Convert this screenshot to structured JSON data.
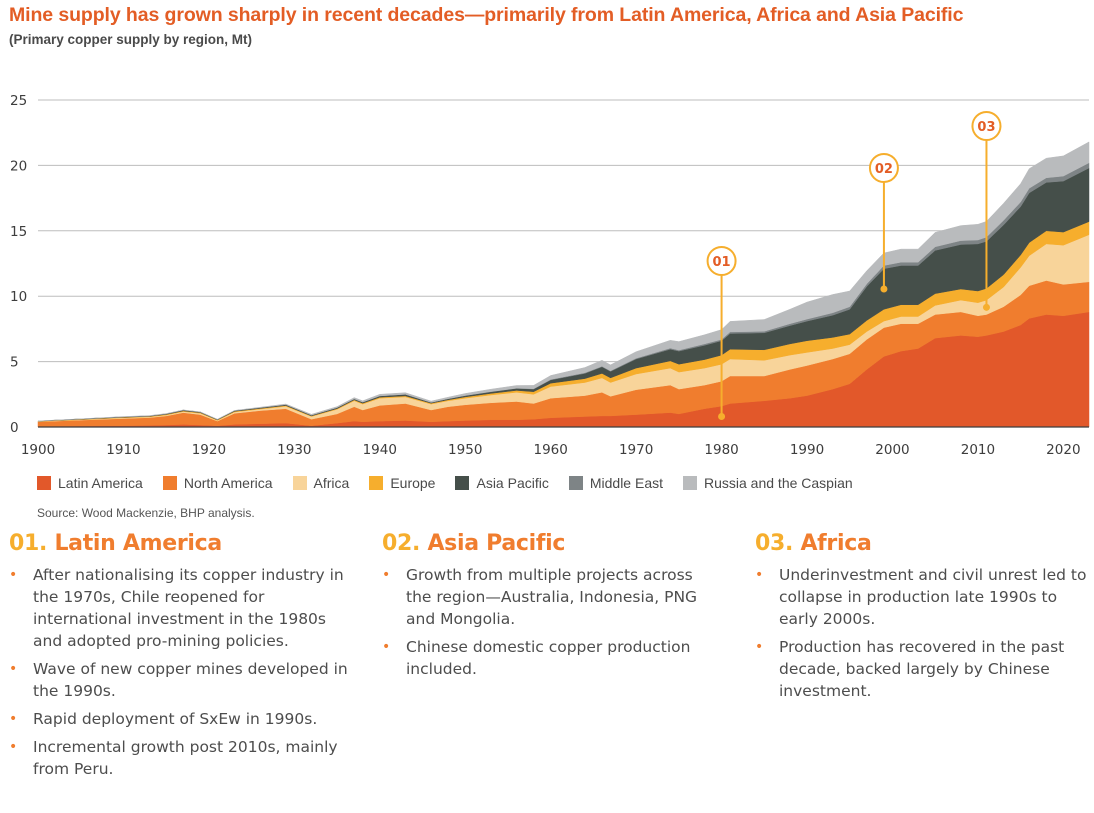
{
  "header": {
    "title": "Mine supply has grown sharply in recent decades—primarily from Latin America, Africa and Asia Pacific",
    "subtitle": "(Primary copper supply by region, Mt)"
  },
  "source": "Source: Wood Mackenzie, BHP analysis.",
  "chart_data": {
    "type": "area",
    "stacked": true,
    "title": "Mine supply has grown sharply in recent decades—primarily from Latin America, Africa and Asia Pacific",
    "subtitle": "(Primary copper supply by region, Mt)",
    "xlabel": "",
    "ylabel": "Mt",
    "xlim": [
      1900,
      2023
    ],
    "ylim": [
      0,
      25
    ],
    "yticks": [
      0,
      5,
      10,
      15,
      20,
      25
    ],
    "xticks": [
      1900,
      1910,
      1920,
      1930,
      1940,
      1950,
      1960,
      1970,
      1980,
      1990,
      2000,
      2010,
      2020
    ],
    "grid": true,
    "legend_position": "bottom",
    "x": [
      1900,
      1905,
      1910,
      1913,
      1915,
      1917,
      1919,
      1921,
      1923,
      1926,
      1929,
      1932,
      1935,
      1937,
      1938,
      1940,
      1943,
      1946,
      1948,
      1950,
      1953,
      1956,
      1958,
      1960,
      1964,
      1966,
      1967,
      1970,
      1974,
      1975,
      1978,
      1980,
      1981,
      1985,
      1988,
      1990,
      1993,
      1995,
      1997,
      1999,
      2001,
      2003,
      2005,
      2008,
      2010,
      2011,
      2013,
      2015,
      2016,
      2018,
      2020,
      2023
    ],
    "series": [
      {
        "name": "Latin America",
        "color": "#e2582a",
        "values": [
          0.05,
          0.08,
          0.1,
          0.12,
          0.15,
          0.2,
          0.15,
          0.1,
          0.2,
          0.25,
          0.3,
          0.1,
          0.3,
          0.45,
          0.4,
          0.45,
          0.5,
          0.4,
          0.45,
          0.5,
          0.55,
          0.55,
          0.6,
          0.7,
          0.8,
          0.85,
          0.85,
          0.95,
          1.1,
          1.0,
          1.4,
          1.6,
          1.8,
          2.0,
          2.2,
          2.4,
          2.9,
          3.3,
          4.4,
          5.4,
          5.8,
          6.0,
          6.8,
          7.0,
          6.9,
          7.0,
          7.3,
          7.8,
          8.3,
          8.6,
          8.5,
          8.8
        ]
      },
      {
        "name": "North America",
        "color": "#f07d2e",
        "values": [
          0.35,
          0.45,
          0.55,
          0.6,
          0.7,
          0.9,
          0.8,
          0.35,
          0.85,
          1.0,
          1.1,
          0.5,
          0.7,
          1.1,
          0.9,
          1.2,
          1.3,
          0.9,
          1.1,
          1.2,
          1.3,
          1.4,
          1.2,
          1.5,
          1.6,
          1.8,
          1.5,
          1.9,
          2.1,
          1.9,
          1.8,
          1.9,
          2.1,
          1.9,
          2.2,
          2.3,
          2.3,
          2.3,
          2.3,
          2.2,
          2.1,
          1.9,
          1.8,
          1.8,
          1.6,
          1.6,
          1.9,
          2.3,
          2.5,
          2.6,
          2.4,
          2.3
        ]
      },
      {
        "name": "Africa",
        "color": "#f8d49a",
        "values": [
          0.02,
          0.03,
          0.05,
          0.05,
          0.06,
          0.08,
          0.1,
          0.05,
          0.1,
          0.12,
          0.18,
          0.2,
          0.35,
          0.45,
          0.45,
          0.55,
          0.5,
          0.45,
          0.45,
          0.5,
          0.6,
          0.7,
          0.7,
          0.9,
          1.0,
          1.1,
          1.05,
          1.2,
          1.3,
          1.3,
          1.3,
          1.3,
          1.3,
          1.2,
          1.1,
          1.0,
          0.8,
          0.7,
          0.6,
          0.5,
          0.55,
          0.55,
          0.7,
          0.9,
          1.0,
          1.1,
          1.5,
          2.1,
          2.3,
          2.8,
          3.0,
          3.6
        ]
      },
      {
        "name": "Europe",
        "color": "#f6ae2d",
        "values": [
          0.02,
          0.03,
          0.04,
          0.04,
          0.05,
          0.05,
          0.05,
          0.04,
          0.05,
          0.05,
          0.06,
          0.05,
          0.06,
          0.07,
          0.07,
          0.08,
          0.08,
          0.07,
          0.08,
          0.1,
          0.12,
          0.15,
          0.2,
          0.25,
          0.3,
          0.35,
          0.35,
          0.45,
          0.55,
          0.6,
          0.65,
          0.7,
          0.75,
          0.8,
          0.85,
          0.9,
          0.85,
          0.8,
          0.85,
          0.9,
          0.9,
          0.9,
          0.9,
          0.85,
          0.9,
          0.9,
          0.95,
          0.95,
          1.0,
          1.0,
          1.0,
          1.0
        ]
      },
      {
        "name": "Asia Pacific",
        "color": "#454f4a",
        "values": [
          0.02,
          0.03,
          0.04,
          0.04,
          0.05,
          0.06,
          0.05,
          0.04,
          0.05,
          0.06,
          0.07,
          0.06,
          0.07,
          0.08,
          0.08,
          0.1,
          0.12,
          0.06,
          0.08,
          0.1,
          0.12,
          0.15,
          0.2,
          0.25,
          0.4,
          0.5,
          0.5,
          0.7,
          0.9,
          1.0,
          1.1,
          1.1,
          1.2,
          1.3,
          1.4,
          1.5,
          1.7,
          1.9,
          2.6,
          3.1,
          3.0,
          3.0,
          3.3,
          3.4,
          3.6,
          3.6,
          3.8,
          3.7,
          3.8,
          3.7,
          3.9,
          4.1
        ]
      },
      {
        "name": "Middle East",
        "color": "#7e8486",
        "values": [
          0.0,
          0.0,
          0.0,
          0.0,
          0.0,
          0.0,
          0.0,
          0.0,
          0.0,
          0.0,
          0.0,
          0.0,
          0.0,
          0.0,
          0.0,
          0.0,
          0.0,
          0.0,
          0.0,
          0.01,
          0.02,
          0.02,
          0.03,
          0.04,
          0.05,
          0.05,
          0.05,
          0.06,
          0.08,
          0.08,
          0.1,
          0.1,
          0.12,
          0.12,
          0.15,
          0.15,
          0.18,
          0.2,
          0.2,
          0.25,
          0.25,
          0.25,
          0.28,
          0.3,
          0.3,
          0.32,
          0.35,
          0.35,
          0.35,
          0.35,
          0.38,
          0.4
        ]
      },
      {
        "name": "Russia and the Caspian",
        "color": "#b9bbbd",
        "values": [
          0.01,
          0.01,
          0.02,
          0.02,
          0.02,
          0.02,
          0.01,
          0.01,
          0.02,
          0.03,
          0.05,
          0.06,
          0.08,
          0.1,
          0.1,
          0.12,
          0.12,
          0.1,
          0.12,
          0.15,
          0.18,
          0.2,
          0.25,
          0.3,
          0.4,
          0.45,
          0.45,
          0.5,
          0.6,
          0.65,
          0.7,
          0.75,
          0.8,
          0.9,
          1.1,
          1.3,
          1.4,
          1.2,
          1.0,
          0.95,
          1.0,
          1.0,
          1.1,
          1.15,
          1.2,
          1.2,
          1.3,
          1.4,
          1.5,
          1.5,
          1.55,
          1.6
        ]
      }
    ],
    "annotations": [
      {
        "label": "01",
        "x": 1980,
        "anchor_series": "Latin America"
      },
      {
        "label": "02",
        "x": 1999,
        "anchor_series": "Asia Pacific"
      },
      {
        "label": "03",
        "x": 2011,
        "anchor_series": "Africa"
      }
    ]
  },
  "legend": [
    {
      "label": "Latin America",
      "color": "#e2582a"
    },
    {
      "label": "North America",
      "color": "#f07d2e"
    },
    {
      "label": "Africa",
      "color": "#f8d49a"
    },
    {
      "label": "Europe",
      "color": "#f6ae2d"
    },
    {
      "label": "Asia Pacific",
      "color": "#454f4a"
    },
    {
      "label": "Middle East",
      "color": "#7e8486"
    },
    {
      "label": "Russia and the Caspian",
      "color": "#b9bbbd"
    }
  ],
  "notes": [
    {
      "num": "01.",
      "heading": "Latin America",
      "bullet_glyph": "•",
      "bullets": [
        "After nationalising its copper industry in the 1970s, Chile reopened for international investment in the 1980s and adopted pro-mining policies.",
        "Wave of new copper mines developed in the 1990s.",
        "Rapid deployment of SxEw in 1990s.",
        "Incremental growth post 2010s, mainly from Peru."
      ]
    },
    {
      "num": "02.",
      "heading": "Asia Pacific",
      "bullet_glyph": "•",
      "bullets": [
        "Growth from multiple projects across the region—Australia, Indonesia, PNG and Mongolia.",
        "Chinese domestic copper production included."
      ]
    },
    {
      "num": "03.",
      "heading": "Africa",
      "bullet_glyph": "•",
      "bullets": [
        "Underinvestment and civil unrest led to collapse in production late 1990s to early 2000s.",
        "Production has recovered in the past decade, backed largely by Chinese investment."
      ]
    }
  ]
}
